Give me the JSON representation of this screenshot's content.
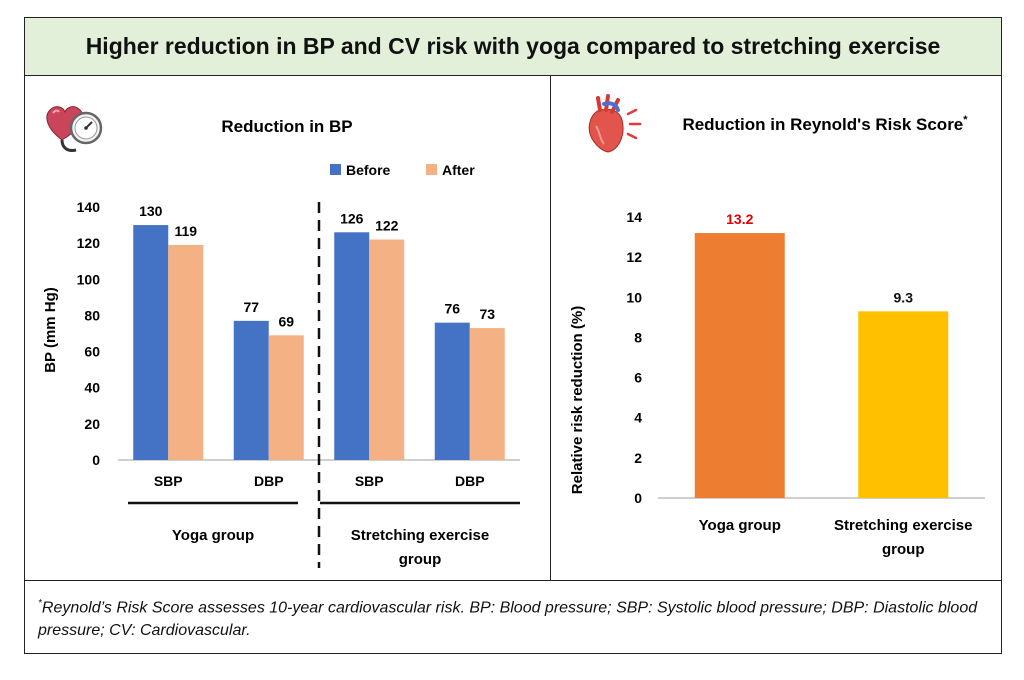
{
  "title": "Higher reduction in BP and CV risk with yoga compared to stretching exercise",
  "colors": {
    "before": "#4472c4",
    "after": "#f4b183",
    "yoga_bar": "#ed7d31",
    "stretch_bar": "#ffc000",
    "title_bg": "#e2efd9",
    "highlight_label": "#e00000"
  },
  "icons": {
    "left": "heart-blood-pressure-gauge-icon",
    "right": "anatomical-heart-icon"
  },
  "chart_data": [
    {
      "type": "bar",
      "title": "Reduction in BP",
      "ylabel": "BP (mm Hg)",
      "ylim": [
        0,
        140
      ],
      "yticks": [
        0,
        20,
        40,
        60,
        80,
        100,
        120,
        140
      ],
      "legend": [
        "Before",
        "After"
      ],
      "legend_position": "top-right",
      "categories": [
        "SBP",
        "DBP",
        "SBP",
        "DBP"
      ],
      "groups": [
        {
          "label": "Yoga group",
          "categories": [
            "SBP",
            "DBP"
          ]
        },
        {
          "label": "Stretching exercise group",
          "label_lines": [
            "Stretching exercise",
            "group"
          ],
          "categories": [
            "SBP",
            "DBP"
          ]
        }
      ],
      "series": [
        {
          "name": "Before",
          "values": [
            130,
            77,
            126,
            76
          ]
        },
        {
          "name": "After",
          "values": [
            119,
            69,
            122,
            73
          ]
        }
      ]
    },
    {
      "type": "bar",
      "title": "Reduction in Reynold's Risk Score",
      "title_marker": "*",
      "ylabel": "Relative risk reduction (%)",
      "ylim": [
        0,
        14
      ],
      "yticks": [
        0,
        2,
        4,
        6,
        8,
        10,
        12,
        14
      ],
      "categories": [
        "Yoga group",
        "Stretching exercise group"
      ],
      "category_lines": [
        [
          "Yoga group"
        ],
        [
          "Stretching exercise",
          "group"
        ]
      ],
      "values": [
        13.2,
        9.3
      ]
    }
  ],
  "footnote": {
    "marker": "*",
    "text": "Reynold’s Risk Score assesses 10-year cardiovascular risk. BP: Blood pressure; SBP: Systolic blood pressure; DBP: Diastolic blood pressure; CV: Cardiovascular."
  }
}
